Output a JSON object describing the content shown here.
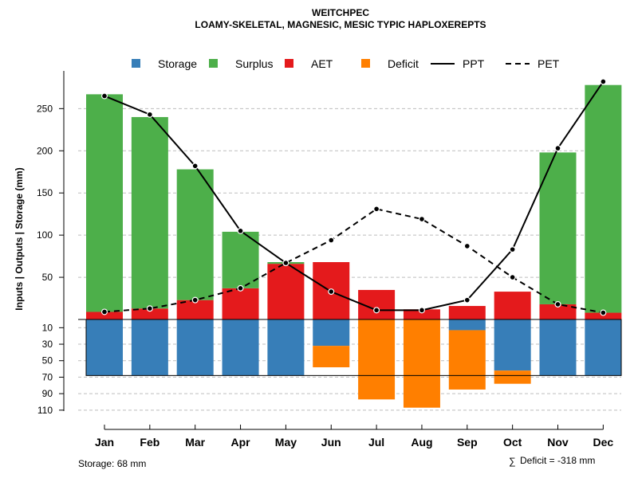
{
  "chart_data": {
    "type": "bar",
    "title": "WEITCHPEC",
    "subtitle": "LOAMY-SKELETAL, MAGNESIC, MESIC TYPIC HAPLOXEREPTS",
    "ylabel": "Inputs | Outputs | Storage    (mm)",
    "categories": [
      "Jan",
      "Feb",
      "Mar",
      "Apr",
      "May",
      "Jun",
      "Jul",
      "Aug",
      "Sep",
      "Oct",
      "Nov",
      "Dec"
    ],
    "upper_ylim": [
      0,
      290
    ],
    "lower_ylim": [
      0,
      115
    ],
    "upper_ticks": [
      "50",
      "100",
      "150",
      "200",
      "250"
    ],
    "upper_tick_values": [
      50,
      100,
      150,
      200,
      250
    ],
    "lower_ticks": [
      "10",
      "30",
      "50",
      "70",
      "90",
      "110"
    ],
    "lower_tick_values": [
      10,
      30,
      50,
      70,
      90,
      110
    ],
    "storage_capacity": 68,
    "series": [
      {
        "name": "Storage",
        "color": "#377EB8",
        "position": "below",
        "values": [
          68,
          68,
          68,
          68,
          68,
          32,
          0,
          0,
          13,
          62,
          68,
          68
        ]
      },
      {
        "name": "Surplus",
        "color": "#4DAF4A",
        "position": "above",
        "values": [
          258,
          227,
          155,
          67,
          2,
          0,
          0,
          0,
          0,
          0,
          180,
          270
        ]
      },
      {
        "name": "AET",
        "color": "#E41A1C",
        "position": "above",
        "values": [
          9,
          13,
          23,
          37,
          66,
          68,
          35,
          12,
          16,
          33,
          18,
          8
        ]
      },
      {
        "name": "Deficit",
        "color": "#FF7F00",
        "position": "below",
        "values": [
          0,
          0,
          0,
          0,
          0,
          26,
          97,
          107,
          72,
          16,
          0,
          0
        ]
      },
      {
        "name": "PPT",
        "style": "solid",
        "values": [
          265,
          243,
          182,
          105,
          67,
          33,
          11,
          11,
          23,
          83,
          203,
          282
        ]
      },
      {
        "name": "PET",
        "style": "dashed",
        "values": [
          9,
          13,
          23,
          37,
          67,
          94,
          131,
          119,
          87,
          50,
          18,
          8
        ]
      }
    ],
    "legend": [
      "Storage",
      "Surplus",
      "AET",
      "Deficit",
      "PPT",
      "PET"
    ],
    "legend_position": "top",
    "grid": true
  },
  "footer": {
    "storage_note": "Storage: 68 mm",
    "deficit_note": "Deficit = -318 mm",
    "sum_symbol": "∑"
  }
}
